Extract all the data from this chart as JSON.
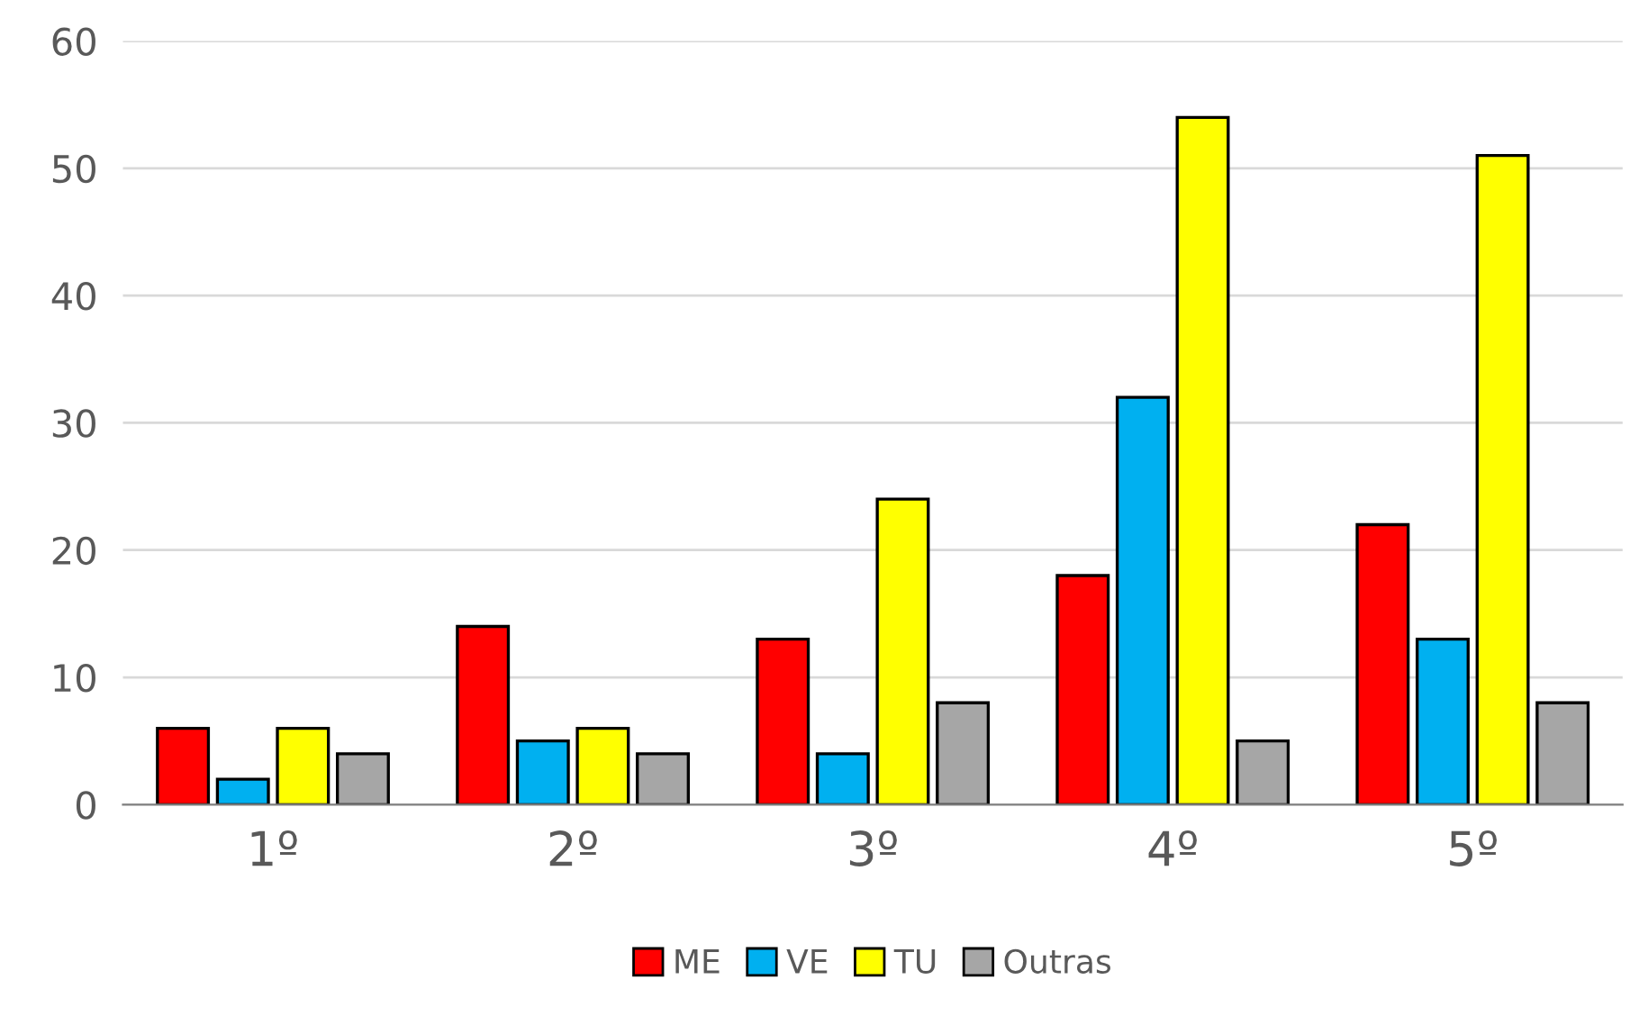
{
  "chart_data": {
    "type": "bar",
    "categories": [
      "1º",
      "2º",
      "3º",
      "4º",
      "5º"
    ],
    "series": [
      {
        "name": "ME",
        "color": "#ff0000",
        "values": [
          6,
          14,
          13,
          18,
          22
        ]
      },
      {
        "name": "VE",
        "color": "#00b0f0",
        "values": [
          2,
          5,
          4,
          32,
          13
        ]
      },
      {
        "name": "TU",
        "color": "#ffff00",
        "values": [
          6,
          6,
          24,
          54,
          51
        ]
      },
      {
        "name": "Outras",
        "color": "#a6a6a6",
        "values": [
          4,
          4,
          8,
          5,
          8
        ]
      }
    ],
    "ylim": [
      0,
      60
    ],
    "yticks": [
      0,
      10,
      20,
      30,
      40,
      50,
      60
    ],
    "grid": "y",
    "legend": "bottom"
  }
}
